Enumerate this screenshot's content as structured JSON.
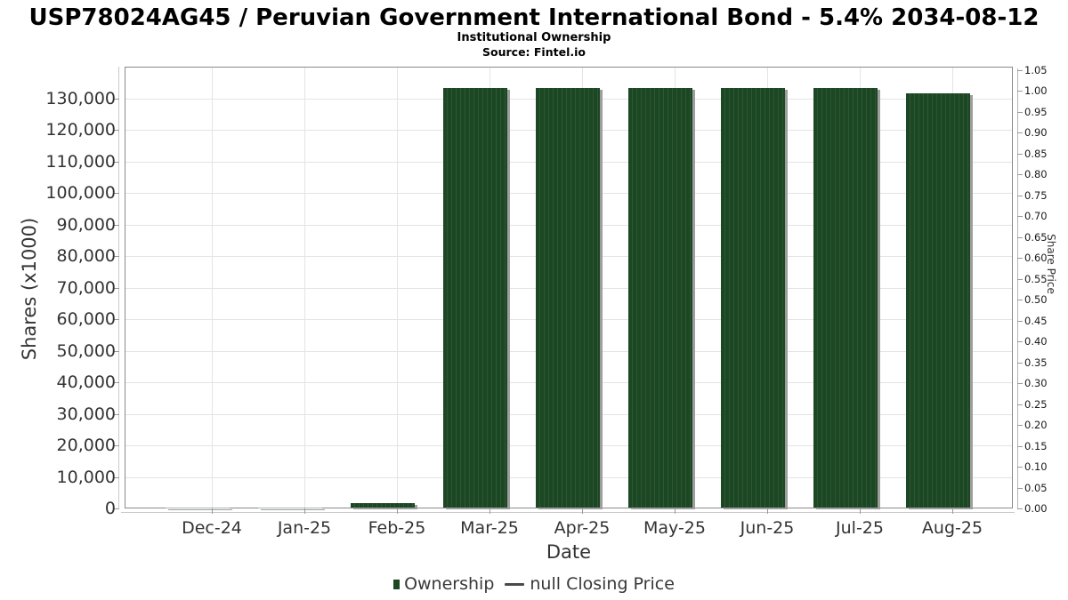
{
  "header": {
    "title": "USP78024AG45 / Peruvian Government International Bond - 5.4% 2034-08-12",
    "subtitle": "Institutional Ownership",
    "source": "Source: Fintel.io"
  },
  "chart_data": {
    "type": "bar",
    "title": "USP78024AG45 / Peruvian Government International Bond - 5.4% 2034-08-12",
    "subtitle": "Institutional Ownership",
    "source": "Source: Fintel.io",
    "categories": [
      "Dec-24",
      "Jan-25",
      "Feb-25",
      "Mar-25",
      "Apr-25",
      "May-25",
      "Jun-25",
      "Jul-25",
      "Aug-25"
    ],
    "series": [
      {
        "name": "Ownership",
        "type": "column",
        "color": "#1c4723",
        "stripe_color": "#2f5636",
        "point_colors": [
          "#a9b5a7",
          "#a9b5a7",
          null,
          null,
          null,
          null,
          null,
          null,
          null
        ],
        "values": [
          700,
          700,
          2000,
          133400,
          133400,
          133400,
          133400,
          133400,
          131700
        ]
      },
      {
        "name": "null Closing Price",
        "type": "line",
        "color": "#4a4a4a",
        "values": []
      }
    ],
    "xlabel": "Date",
    "ylabel": "Shares (x1000)",
    "y2label": "Share Price",
    "ylim_left": [
      0,
      140000
    ],
    "ytick_step_left": 10000,
    "yticks_left": [
      {
        "value": 0,
        "label": "0"
      },
      {
        "value": 10000,
        "label": "10,000"
      },
      {
        "value": 20000,
        "label": "20,000"
      },
      {
        "value": 30000,
        "label": "30,000"
      },
      {
        "value": 40000,
        "label": "40,000"
      },
      {
        "value": 50000,
        "label": "50,000"
      },
      {
        "value": 60000,
        "label": "60,000"
      },
      {
        "value": 70000,
        "label": "70,000"
      },
      {
        "value": 80000,
        "label": "80,000"
      },
      {
        "value": 90000,
        "label": "90,000"
      },
      {
        "value": 100000,
        "label": "100,000"
      },
      {
        "value": 110000,
        "label": "110,000"
      },
      {
        "value": 120000,
        "label": "120,000"
      },
      {
        "value": 130000,
        "label": "130,000"
      }
    ],
    "ylim_right": [
      0,
      1.05
    ],
    "ytick_step_right": 0.05,
    "yticks_right": [
      {
        "value": 0.0,
        "label": "0.00"
      },
      {
        "value": 0.05,
        "label": "0.05"
      },
      {
        "value": 0.1,
        "label": "0.10"
      },
      {
        "value": 0.15,
        "label": "0.15"
      },
      {
        "value": 0.2,
        "label": "0.20"
      },
      {
        "value": 0.25,
        "label": "0.25"
      },
      {
        "value": 0.3,
        "label": "0.30"
      },
      {
        "value": 0.35,
        "label": "0.35"
      },
      {
        "value": 0.4,
        "label": "0.40"
      },
      {
        "value": 0.45,
        "label": "0.45"
      },
      {
        "value": 0.5,
        "label": "0.50"
      },
      {
        "value": 0.55,
        "label": "0.55"
      },
      {
        "value": 0.6,
        "label": "0.60"
      },
      {
        "value": 0.65,
        "label": "0.65"
      },
      {
        "value": 0.7,
        "label": "0.70"
      },
      {
        "value": 0.75,
        "label": "0.75"
      },
      {
        "value": 0.8,
        "label": "0.80"
      },
      {
        "value": 0.85,
        "label": "0.85"
      },
      {
        "value": 0.9,
        "label": "0.90"
      },
      {
        "value": 0.95,
        "label": "0.95"
      },
      {
        "value": 1.0,
        "label": "1.00"
      },
      {
        "value": 1.05,
        "label": "1.05"
      }
    ],
    "grid": true,
    "legend_position": "bottom"
  },
  "legend": {
    "items": [
      {
        "label": "Ownership",
        "marker": "square",
        "color": "#1c4723"
      },
      {
        "label": "null Closing Price",
        "marker": "dash",
        "color": "#4a4a4a"
      }
    ]
  },
  "colors": {
    "bar_green": "#1c4723",
    "bar_stripe": "#2f5636",
    "short_bar": "#a9b5a7",
    "gridline": "#e4e4e4",
    "plot_border": "#8a8a8a",
    "shadow": "#9e9e9e",
    "text": "#333333"
  }
}
